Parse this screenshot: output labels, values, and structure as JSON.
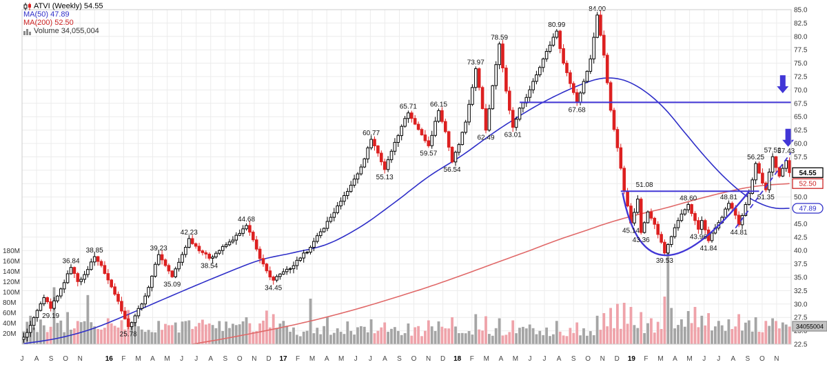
{
  "chart_data": {
    "type": "candlestick",
    "symbol": "ATVI",
    "timeframe": "Weekly",
    "last_price": 54.55,
    "legend": {
      "title": "ATVI (Weekly) 54.55",
      "ma50": "MA(50) 47.89",
      "ma200": "MA(200) 52.50",
      "volume": "Volume 34,055,004"
    },
    "colors": {
      "up": "#000000",
      "down": "#dd2020",
      "up_fill": "#ffffff",
      "ma50": "#2e2ec8",
      "ma200": "#e06868",
      "annotation": "#4136d6",
      "vol_up": "#a5a5a5",
      "vol_down": "#efa3aa",
      "grid": "#ececec",
      "frame": "#cccccc",
      "label": "#111111",
      "axis_text": "#333333"
    },
    "y_axis": {
      "min": 22.5,
      "max": 85,
      "step": 2.5,
      "labels": [
        "85.0",
        "82.5",
        "80.0",
        "77.5",
        "75.0",
        "72.5",
        "70.0",
        "67.5",
        "65.0",
        "62.5",
        "60.0",
        "57.5",
        "55.0",
        "52.5",
        "50.0",
        "47.5",
        "45.0",
        "42.5",
        "40.0",
        "37.5",
        "35.0",
        "32.5",
        "30.0",
        "27.5",
        "25.0",
        "22.5"
      ]
    },
    "volume_axis": {
      "labels": [
        "180M",
        "160M",
        "140M",
        "120M",
        "100M",
        "80M",
        "60M",
        "40M",
        "20M"
      ],
      "current": "34055004"
    },
    "x_axis": {
      "months": [
        "J",
        "A",
        "S",
        "O",
        "N",
        "16",
        "F",
        "M",
        "A",
        "M",
        "J",
        "J",
        "A",
        "S",
        "O",
        "N",
        "D",
        "17",
        "F",
        "M",
        "A",
        "M",
        "J",
        "J",
        "A",
        "S",
        "O",
        "N",
        "D",
        "18",
        "F",
        "M",
        "A",
        "M",
        "J",
        "J",
        "A",
        "S",
        "O",
        "N",
        "D",
        "19",
        "F",
        "M",
        "A",
        "M",
        "J",
        "J",
        "A",
        "S",
        "O",
        "N"
      ],
      "total_months": 53
    },
    "weeks_total": 228,
    "price_anchors": [
      [
        0,
        23.8
      ],
      [
        2,
        26.0
      ],
      [
        4,
        28.8
      ],
      [
        6,
        31.2
      ],
      [
        8,
        29.19
      ],
      [
        10,
        31.5
      ],
      [
        12,
        34.0
      ],
      [
        14,
        36.84
      ],
      [
        16,
        34.2
      ],
      [
        18,
        35.5
      ],
      [
        21,
        38.85
      ],
      [
        23,
        37.2
      ],
      [
        25,
        34.5
      ],
      [
        28,
        30.5
      ],
      [
        31,
        25.78
      ],
      [
        33,
        27.8
      ],
      [
        36,
        31.5
      ],
      [
        38,
        35.2
      ],
      [
        40,
        39.23
      ],
      [
        42,
        37.2
      ],
      [
        44,
        35.09
      ],
      [
        46,
        37.8
      ],
      [
        49,
        42.23
      ],
      [
        51,
        40.8
      ],
      [
        53,
        39.6
      ],
      [
        55,
        38.54
      ],
      [
        58,
        40.0
      ],
      [
        61,
        41.6
      ],
      [
        64,
        43.2
      ],
      [
        66,
        44.68
      ],
      [
        68,
        42.0
      ],
      [
        70,
        38.5
      ],
      [
        72,
        36.2
      ],
      [
        74,
        34.45
      ],
      [
        76,
        35.6
      ],
      [
        79,
        36.6
      ],
      [
        82,
        38.6
      ],
      [
        85,
        40.6
      ],
      [
        88,
        43.5
      ],
      [
        91,
        46.2
      ],
      [
        94,
        49.2
      ],
      [
        97,
        52.2
      ],
      [
        100,
        55.6
      ],
      [
        103,
        60.77
      ],
      [
        105,
        58.2
      ],
      [
        107,
        55.13
      ],
      [
        110,
        60.2
      ],
      [
        112,
        63.2
      ],
      [
        114,
        65.71
      ],
      [
        116,
        63.6
      ],
      [
        118,
        61.6
      ],
      [
        120,
        59.57
      ],
      [
        123,
        66.15
      ],
      [
        125,
        62.2
      ],
      [
        127,
        56.54
      ],
      [
        129,
        59.8
      ],
      [
        131,
        64.0
      ],
      [
        134,
        73.97
      ],
      [
        136,
        66.5
      ],
      [
        137,
        62.49
      ],
      [
        139,
        70.8
      ],
      [
        141,
        78.59
      ],
      [
        143,
        69.8
      ],
      [
        145,
        63.01
      ],
      [
        147,
        66.6
      ],
      [
        149,
        68.6
      ],
      [
        151,
        71.6
      ],
      [
        153,
        74.2
      ],
      [
        155,
        77.2
      ],
      [
        158,
        80.99
      ],
      [
        160,
        75.0
      ],
      [
        162,
        71.2
      ],
      [
        164,
        67.68
      ],
      [
        166,
        71.6
      ],
      [
        168,
        75.8
      ],
      [
        170,
        84.0
      ],
      [
        172,
        76.5
      ],
      [
        174,
        66.2
      ],
      [
        176,
        59.2
      ],
      [
        178,
        51.08
      ],
      [
        180,
        45.14
      ],
      [
        182,
        49.6
      ],
      [
        183,
        43.36
      ],
      [
        185,
        47.2
      ],
      [
        187,
        44.9
      ],
      [
        190,
        39.53
      ],
      [
        192,
        42.6
      ],
      [
        194,
        45.6
      ],
      [
        197,
        48.6
      ],
      [
        199,
        45.6
      ],
      [
        200,
        43.96
      ],
      [
        201,
        45.6
      ],
      [
        203,
        41.84
      ],
      [
        205,
        44.2
      ],
      [
        207,
        46.2
      ],
      [
        209,
        48.81
      ],
      [
        211,
        46.6
      ],
      [
        212,
        44.81
      ],
      [
        214,
        48.6
      ],
      [
        216,
        53.2
      ],
      [
        217,
        56.25
      ],
      [
        219,
        52.6
      ],
      [
        220,
        51.35
      ],
      [
        222,
        57.52
      ],
      [
        224,
        53.9
      ],
      [
        226,
        56.8
      ],
      [
        227,
        54.55
      ]
    ],
    "swing_labels": [
      {
        "week": 8,
        "price": 29.19,
        "text": "29.19",
        "side": "low"
      },
      {
        "week": 14,
        "price": 36.84,
        "text": "36.84",
        "side": "high"
      },
      {
        "week": 21,
        "price": 38.85,
        "text": "38.85",
        "side": "high"
      },
      {
        "week": 31,
        "price": 25.78,
        "text": "25.78",
        "side": "low"
      },
      {
        "week": 40,
        "price": 39.23,
        "text": "39.23",
        "side": "high"
      },
      {
        "week": 44,
        "price": 35.09,
        "text": "35.09",
        "side": "low"
      },
      {
        "week": 49,
        "price": 42.23,
        "text": "42.23",
        "side": "high"
      },
      {
        "week": 55,
        "price": 38.54,
        "text": "38.54",
        "side": "low"
      },
      {
        "week": 66,
        "price": 44.68,
        "text": "44.68",
        "side": "high"
      },
      {
        "week": 74,
        "price": 34.45,
        "text": "34.45",
        "side": "low"
      },
      {
        "week": 103,
        "price": 60.77,
        "text": "60.77",
        "side": "high"
      },
      {
        "week": 107,
        "price": 55.13,
        "text": "55.13",
        "side": "low"
      },
      {
        "week": 114,
        "price": 65.71,
        "text": "65.71",
        "side": "high"
      },
      {
        "week": 120,
        "price": 59.57,
        "text": "59.57",
        "side": "low"
      },
      {
        "week": 123,
        "price": 66.15,
        "text": "66.15",
        "side": "high"
      },
      {
        "week": 127,
        "price": 56.54,
        "text": "56.54",
        "side": "low"
      },
      {
        "week": 134,
        "price": 73.97,
        "text": "73.97",
        "side": "high"
      },
      {
        "week": 137,
        "price": 62.49,
        "text": "62.49",
        "side": "low"
      },
      {
        "week": 141,
        "price": 78.59,
        "text": "78.59",
        "side": "high"
      },
      {
        "week": 145,
        "price": 63.01,
        "text": "63.01",
        "side": "low"
      },
      {
        "week": 158,
        "price": 80.99,
        "text": "80.99",
        "side": "high"
      },
      {
        "week": 164,
        "price": 67.68,
        "text": "67.68",
        "side": "low"
      },
      {
        "week": 170,
        "price": 84.0,
        "text": "84.00",
        "side": "high"
      },
      {
        "week": 180,
        "price": 45.14,
        "text": "45.14",
        "side": "low"
      },
      {
        "week": 184,
        "price": 51.08,
        "text": "51.08",
        "side": "line"
      },
      {
        "week": 183,
        "price": 43.36,
        "text": "43.36",
        "side": "low"
      },
      {
        "week": 190,
        "price": 39.53,
        "text": "39.53",
        "side": "low"
      },
      {
        "week": 197,
        "price": 48.6,
        "text": "48.60",
        "side": "high"
      },
      {
        "week": 200,
        "price": 43.96,
        "text": "43.96",
        "side": "low"
      },
      {
        "week": 203,
        "price": 41.84,
        "text": "41.84",
        "side": "low"
      },
      {
        "week": 209,
        "price": 48.81,
        "text": "48.81",
        "side": "high"
      },
      {
        "week": 212,
        "price": 44.81,
        "text": "44.81",
        "side": "low"
      },
      {
        "week": 217,
        "price": 56.25,
        "text": "56.25",
        "side": "high"
      },
      {
        "week": 220,
        "price": 51.35,
        "text": "51.35",
        "side": "low"
      },
      {
        "week": 222,
        "price": 57.52,
        "text": "57.52",
        "side": "high"
      },
      {
        "week": 226,
        "price": 57.43,
        "text": "57.43",
        "side": "high"
      }
    ],
    "ma50_points": [
      [
        0,
        22.6
      ],
      [
        10,
        23.6
      ],
      [
        20,
        25.3
      ],
      [
        30,
        27.8
      ],
      [
        40,
        30.5
      ],
      [
        50,
        33.2
      ],
      [
        60,
        35.8
      ],
      [
        70,
        38.2
      ],
      [
        80,
        39.6
      ],
      [
        90,
        41.2
      ],
      [
        100,
        44.5
      ],
      [
        110,
        49.0
      ],
      [
        120,
        53.8
      ],
      [
        130,
        57.8
      ],
      [
        140,
        62.3
      ],
      [
        150,
        66.3
      ],
      [
        158,
        69.0
      ],
      [
        166,
        71.2
      ],
      [
        172,
        72.2
      ],
      [
        178,
        71.8
      ],
      [
        184,
        69.8
      ],
      [
        190,
        66.5
      ],
      [
        196,
        62.0
      ],
      [
        202,
        57.5
      ],
      [
        208,
        53.5
      ],
      [
        214,
        50.3
      ],
      [
        219,
        48.6
      ],
      [
        223,
        47.9
      ],
      [
        227,
        47.89
      ]
    ],
    "ma200_points": [
      [
        50,
        22.5
      ],
      [
        60,
        23.6
      ],
      [
        70,
        24.8
      ],
      [
        80,
        26.1
      ],
      [
        90,
        27.6
      ],
      [
        100,
        29.3
      ],
      [
        110,
        31.2
      ],
      [
        120,
        33.2
      ],
      [
        130,
        35.4
      ],
      [
        140,
        37.7
      ],
      [
        150,
        40.0
      ],
      [
        158,
        41.9
      ],
      [
        166,
        43.6
      ],
      [
        174,
        45.3
      ],
      [
        182,
        46.7
      ],
      [
        190,
        47.9
      ],
      [
        198,
        49.3
      ],
      [
        206,
        50.6
      ],
      [
        214,
        51.7
      ],
      [
        220,
        52.2
      ],
      [
        227,
        52.5
      ]
    ],
    "volume_spikes": {
      "2": 55,
      "9": 110,
      "13": 62,
      "19": 95,
      "25": 50,
      "31": 66,
      "33": 48,
      "40": 45,
      "49": 46,
      "55": 40,
      "66": 52,
      "72": 65,
      "74": 58,
      "85": 88,
      "90": 52,
      "96": 44,
      "103": 48,
      "107": 42,
      "114": 40,
      "120": 46,
      "123": 44,
      "127": 52,
      "134": 58,
      "137": 54,
      "141": 50,
      "145": 46,
      "150": 38,
      "158": 45,
      "164": 42,
      "170": 55,
      "172": 60,
      "174": 70,
      "176": 78,
      "178": 80,
      "180": 72,
      "183": 62,
      "186": 50,
      "190": 92,
      "191": 178,
      "192": 70,
      "195": 48,
      "197": 64,
      "199": 72,
      "201": 55,
      "203": 60,
      "206": 45,
      "209": 48,
      "212": 58,
      "215": 46,
      "217": 52,
      "220": 45,
      "222": 50,
      "225": 42,
      "226": 38,
      "227": 34
    },
    "annotations": {
      "hline1": {
        "price": 67.68,
        "from_week": 147,
        "to_edge": true
      },
      "hline2": {
        "price": 51.08,
        "from_week": 177,
        "to_week": 218
      },
      "cup": {
        "left": [
          177.5,
          50.8
        ],
        "bottom": [
          190.5,
          39.1
        ],
        "right": [
          215,
          51.0
        ]
      },
      "dashed": {
        "from": [
          211,
          44.2
        ],
        "to": [
          227.6,
          58.4
        ]
      },
      "arrows": [
        {
          "week": 225,
          "tip_price": 69.4
        },
        {
          "week": 226.6,
          "tip_price": 59.4
        }
      ]
    },
    "axis_markers": [
      {
        "text": "54.55",
        "type": "price"
      },
      {
        "text": "52.50",
        "type": "ma200"
      },
      {
        "text": "47.89",
        "type": "ma50"
      },
      {
        "text": "34055004",
        "type": "volume"
      }
    ]
  }
}
